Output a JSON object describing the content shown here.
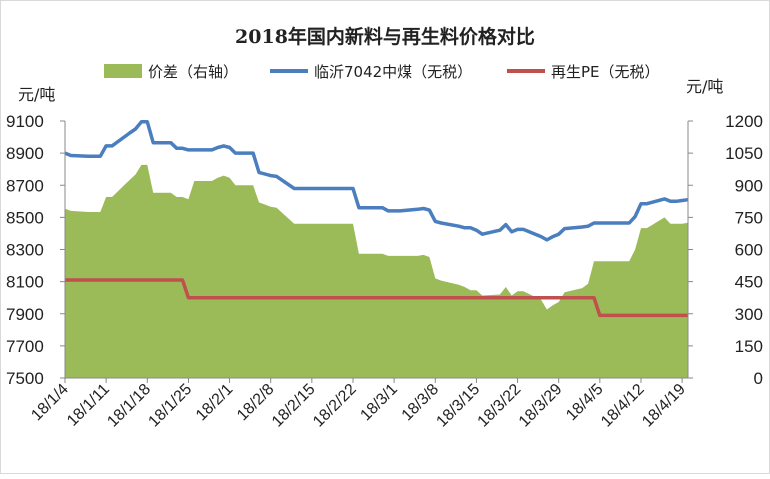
{
  "chart_data": {
    "type": "line+area",
    "title": "2018年国内新料与再生料价格对比",
    "left_axis": {
      "unit": "元/吨",
      "ylim": [
        7500,
        9100
      ],
      "ticks": [
        9100,
        8900,
        8700,
        8500,
        8300,
        8100,
        7900,
        7700,
        7500
      ]
    },
    "right_axis": {
      "unit": "元/吨",
      "ylim": [
        0,
        1200
      ],
      "ticks": [
        1200,
        1050,
        900,
        750,
        600,
        450,
        300,
        150,
        0
      ]
    },
    "x_tick_labels": [
      "18/1/4",
      "18/1/11",
      "18/1/18",
      "18/1/25",
      "18/2/1",
      "18/2/8",
      "18/2/15",
      "18/2/22",
      "18/3/1",
      "18/3/8",
      "18/3/15",
      "18/3/22",
      "18/3/29",
      "18/4/5",
      "18/4/12",
      "18/4/19"
    ],
    "series": [
      {
        "name": "价差（右轴）",
        "kind": "area",
        "axis": "right",
        "color": "#9bbb59",
        "values": [
          {
            "x": "18/1/4",
            "y": 790
          },
          {
            "x": "18/1/5",
            "y": 780
          },
          {
            "x": "18/1/8",
            "y": 775
          },
          {
            "x": "18/1/9",
            "y": 775
          },
          {
            "x": "18/1/10",
            "y": 775
          },
          {
            "x": "18/1/11",
            "y": 845
          },
          {
            "x": "18/1/12",
            "y": 845
          },
          {
            "x": "18/1/15",
            "y": 925
          },
          {
            "x": "18/1/16",
            "y": 950
          },
          {
            "x": "18/1/17",
            "y": 995
          },
          {
            "x": "18/1/18",
            "y": 995
          },
          {
            "x": "18/1/19",
            "y": 865
          },
          {
            "x": "18/1/22",
            "y": 865
          },
          {
            "x": "18/1/23",
            "y": 845
          },
          {
            "x": "18/1/24",
            "y": 845
          },
          {
            "x": "18/1/25",
            "y": 835
          },
          {
            "x": "18/1/26",
            "y": 920
          },
          {
            "x": "18/1/29",
            "y": 920
          },
          {
            "x": "18/1/30",
            "y": 935
          },
          {
            "x": "18/1/31",
            "y": 945
          },
          {
            "x": "18/2/1",
            "y": 935
          },
          {
            "x": "18/2/2",
            "y": 900
          },
          {
            "x": "18/2/5",
            "y": 900
          },
          {
            "x": "18/2/6",
            "y": 820
          },
          {
            "x": "18/2/7",
            "y": 810
          },
          {
            "x": "18/2/8",
            "y": 800
          },
          {
            "x": "18/2/9",
            "y": 795
          },
          {
            "x": "18/2/12",
            "y": 720
          },
          {
            "x": "18/2/13",
            "y": 720
          },
          {
            "x": "18/2/14",
            "y": 720
          },
          {
            "x": "18/2/15",
            "y": 720
          },
          {
            "x": "18/2/16",
            "y": 720
          },
          {
            "x": "18/2/22",
            "y": 720
          },
          {
            "x": "18/2/23",
            "y": 580
          },
          {
            "x": "18/2/26",
            "y": 580
          },
          {
            "x": "18/2/27",
            "y": 580
          },
          {
            "x": "18/2/28",
            "y": 570
          },
          {
            "x": "18/3/1",
            "y": 570
          },
          {
            "x": "18/3/2",
            "y": 570
          },
          {
            "x": "18/3/5",
            "y": 570
          },
          {
            "x": "18/3/6",
            "y": 575
          },
          {
            "x": "18/3/7",
            "y": 565
          },
          {
            "x": "18/3/8",
            "y": 465
          },
          {
            "x": "18/3/9",
            "y": 455
          },
          {
            "x": "18/3/12",
            "y": 435
          },
          {
            "x": "18/3/13",
            "y": 425
          },
          {
            "x": "18/3/14",
            "y": 410
          },
          {
            "x": "18/3/15",
            "y": 410
          },
          {
            "x": "18/3/16",
            "y": 385
          },
          {
            "x": "18/3/19",
            "y": 390
          },
          {
            "x": "18/3/20",
            "y": 425
          },
          {
            "x": "18/3/21",
            "y": 385
          },
          {
            "x": "18/3/22",
            "y": 405
          },
          {
            "x": "18/3/23",
            "y": 405
          },
          {
            "x": "18/3/26",
            "y": 365
          },
          {
            "x": "18/3/27",
            "y": 320
          },
          {
            "x": "18/3/28",
            "y": 340
          },
          {
            "x": "18/3/29",
            "y": 355
          },
          {
            "x": "18/3/30",
            "y": 400
          },
          {
            "x": "18/4/2",
            "y": 420
          },
          {
            "x": "18/4/3",
            "y": 440
          },
          {
            "x": "18/4/4",
            "y": 545
          },
          {
            "x": "18/4/9",
            "y": 545
          },
          {
            "x": "18/4/10",
            "y": 545
          },
          {
            "x": "18/4/11",
            "y": 600
          },
          {
            "x": "18/4/12",
            "y": 700
          },
          {
            "x": "18/4/13",
            "y": 700
          },
          {
            "x": "18/4/16",
            "y": 750
          },
          {
            "x": "18/4/17",
            "y": 720
          },
          {
            "x": "18/4/18",
            "y": 720
          },
          {
            "x": "18/4/19",
            "y": 720
          },
          {
            "x": "18/4/20",
            "y": 725
          }
        ]
      },
      {
        "name": "临沂7042中煤（无税）",
        "kind": "line",
        "axis": "left",
        "color": "#4a7ebf",
        "values": [
          {
            "x": "18/1/4",
            "y": 8900
          },
          {
            "x": "18/1/5",
            "y": 8885
          },
          {
            "x": "18/1/8",
            "y": 8880
          },
          {
            "x": "18/1/9",
            "y": 8880
          },
          {
            "x": "18/1/10",
            "y": 8880
          },
          {
            "x": "18/1/11",
            "y": 8945
          },
          {
            "x": "18/1/12",
            "y": 8945
          },
          {
            "x": "18/1/15",
            "y": 9025
          },
          {
            "x": "18/1/16",
            "y": 9050
          },
          {
            "x": "18/1/17",
            "y": 9095
          },
          {
            "x": "18/1/18",
            "y": 9095
          },
          {
            "x": "18/1/19",
            "y": 8965
          },
          {
            "x": "18/1/22",
            "y": 8965
          },
          {
            "x": "18/1/23",
            "y": 8930
          },
          {
            "x": "18/1/24",
            "y": 8930
          },
          {
            "x": "18/1/25",
            "y": 8920
          },
          {
            "x": "18/1/26",
            "y": 8920
          },
          {
            "x": "18/1/29",
            "y": 8920
          },
          {
            "x": "18/1/30",
            "y": 8935
          },
          {
            "x": "18/1/31",
            "y": 8945
          },
          {
            "x": "18/2/1",
            "y": 8935
          },
          {
            "x": "18/2/2",
            "y": 8900
          },
          {
            "x": "18/2/5",
            "y": 8900
          },
          {
            "x": "18/2/6",
            "y": 8780
          },
          {
            "x": "18/2/7",
            "y": 8770
          },
          {
            "x": "18/2/8",
            "y": 8760
          },
          {
            "x": "18/2/9",
            "y": 8755
          },
          {
            "x": "18/2/12",
            "y": 8680
          },
          {
            "x": "18/2/13",
            "y": 8680
          },
          {
            "x": "18/2/14",
            "y": 8680
          },
          {
            "x": "18/2/15",
            "y": 8680
          },
          {
            "x": "18/2/16",
            "y": 8680
          },
          {
            "x": "18/2/22",
            "y": 8680
          },
          {
            "x": "18/2/23",
            "y": 8560
          },
          {
            "x": "18/2/26",
            "y": 8560
          },
          {
            "x": "18/2/27",
            "y": 8560
          },
          {
            "x": "18/2/28",
            "y": 8540
          },
          {
            "x": "18/3/1",
            "y": 8540
          },
          {
            "x": "18/3/2",
            "y": 8540
          },
          {
            "x": "18/3/5",
            "y": 8550
          },
          {
            "x": "18/3/6",
            "y": 8555
          },
          {
            "x": "18/3/7",
            "y": 8545
          },
          {
            "x": "18/3/8",
            "y": 8475
          },
          {
            "x": "18/3/9",
            "y": 8465
          },
          {
            "x": "18/3/12",
            "y": 8445
          },
          {
            "x": "18/3/13",
            "y": 8435
          },
          {
            "x": "18/3/14",
            "y": 8435
          },
          {
            "x": "18/3/15",
            "y": 8420
          },
          {
            "x": "18/3/16",
            "y": 8395
          },
          {
            "x": "18/3/19",
            "y": 8420
          },
          {
            "x": "18/3/20",
            "y": 8455
          },
          {
            "x": "18/3/21",
            "y": 8410
          },
          {
            "x": "18/3/22",
            "y": 8425
          },
          {
            "x": "18/3/23",
            "y": 8425
          },
          {
            "x": "18/3/26",
            "y": 8380
          },
          {
            "x": "18/3/27",
            "y": 8360
          },
          {
            "x": "18/3/28",
            "y": 8380
          },
          {
            "x": "18/3/29",
            "y": 8395
          },
          {
            "x": "18/3/30",
            "y": 8430
          },
          {
            "x": "18/4/2",
            "y": 8440
          },
          {
            "x": "18/4/3",
            "y": 8445
          },
          {
            "x": "18/4/4",
            "y": 8465
          },
          {
            "x": "18/4/9",
            "y": 8465
          },
          {
            "x": "18/4/10",
            "y": 8465
          },
          {
            "x": "18/4/11",
            "y": 8505
          },
          {
            "x": "18/4/12",
            "y": 8585
          },
          {
            "x": "18/4/13",
            "y": 8585
          },
          {
            "x": "18/4/16",
            "y": 8615
          },
          {
            "x": "18/4/17",
            "y": 8600
          },
          {
            "x": "18/4/18",
            "y": 8600
          },
          {
            "x": "18/4/19",
            "y": 8605
          },
          {
            "x": "18/4/20",
            "y": 8610
          }
        ]
      },
      {
        "name": "再生PE（无税）",
        "kind": "line",
        "axis": "left",
        "color": "#c0504d",
        "values": [
          {
            "x": "18/1/4",
            "y": 8110
          },
          {
            "x": "18/1/24",
            "y": 8110
          },
          {
            "x": "18/1/25",
            "y": 8000
          },
          {
            "x": "18/4/4",
            "y": 8000
          },
          {
            "x": "18/4/5",
            "y": 7890
          },
          {
            "x": "18/4/20",
            "y": 7890
          }
        ]
      }
    ],
    "legend_position": "top",
    "grid": false
  }
}
